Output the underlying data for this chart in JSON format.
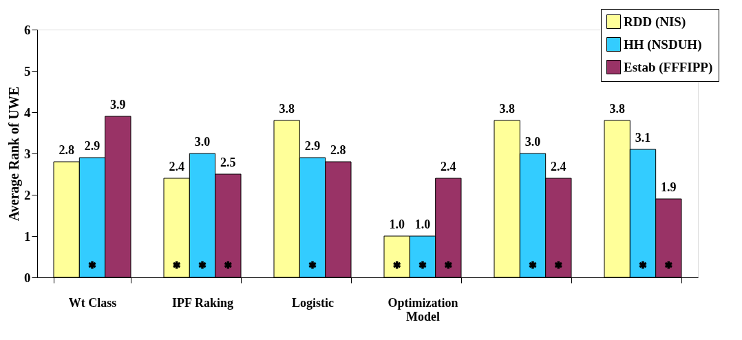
{
  "chart_data": {
    "type": "bar",
    "ylabel": "Average Rank of UWE",
    "categories": [
      "Wt Class",
      "IPF Raking",
      "Logistic",
      "Optimization Model",
      null,
      null
    ],
    "series": [
      {
        "name": "RDD (NIS)",
        "color": "#ffff99",
        "values": [
          2.8,
          2.4,
          3.8,
          1.0,
          3.8,
          3.8
        ],
        "value_labels": [
          "2.8",
          "2.4",
          "3.8",
          "1.0",
          "3.8",
          "3.8"
        ]
      },
      {
        "name": "HH (NSDUH)",
        "color": "#33ccff",
        "values": [
          2.9,
          3.0,
          2.9,
          1.0,
          3.0,
          3.1
        ],
        "value_labels": [
          "2.9",
          "3.0",
          "2.9",
          "1.0",
          "3.0",
          "3.1"
        ]
      },
      {
        "name": "Estab (FFFIPP)",
        "color": "#993366",
        "values": [
          3.9,
          2.5,
          2.8,
          2.4,
          2.4,
          1.9
        ],
        "value_labels": [
          "3.9",
          "2.5",
          "2.8",
          "2.4",
          "2.4",
          "1.9"
        ]
      },
      {
        "type": "scatter",
        "color": "#000000",
        "marker": "cross",
        "values": [
          null,
          0.3,
          null,
          0.3,
          null,
          null
        ]
      },
      {
        "type": "scatter",
        "color": "#000000",
        "marker": "cross",
        "values": [
          0.3,
          0.3,
          0.3,
          0.3,
          0.3,
          0.3
        ]
      },
      {
        "type": "scatter",
        "color": "#000000",
        "marker": "cross",
        "values": [
          null,
          0.3,
          null,
          0.3,
          0.3,
          0.3
        ]
      }
    ],
    "ylim": [
      0,
      6
    ],
    "yticks": [
      0,
      1,
      2,
      3,
      4,
      5,
      6
    ],
    "grid": false,
    "legend": "top right"
  }
}
